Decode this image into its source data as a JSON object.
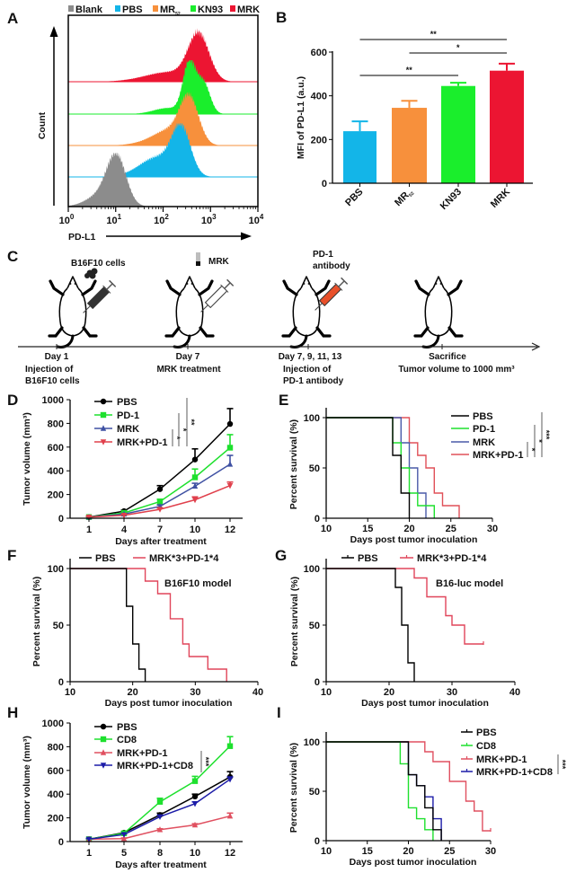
{
  "figure": {
    "panel_labels": [
      "A",
      "B",
      "C",
      "D",
      "E",
      "F",
      "G",
      "H",
      "I"
    ]
  },
  "chart_data": [
    {
      "panel": "A",
      "type": "histogram",
      "xlabel": "PD-L1",
      "ylabel": "Count",
      "x_scale": "log",
      "xlim": [
        1,
        10000
      ],
      "x_ticks": [
        {
          "base": "10",
          "exp": "0"
        },
        {
          "base": "10",
          "exp": "1"
        },
        {
          "base": "10",
          "exp": "2"
        },
        {
          "base": "10",
          "exp": "3"
        },
        {
          "base": "10",
          "exp": "4"
        }
      ],
      "legend_position": "top",
      "series": [
        {
          "name": "Blank",
          "sub": "",
          "color": "#8c8c8c"
        },
        {
          "name": "PBS",
          "sub": "",
          "color": "#13b5e8"
        },
        {
          "name": "MR",
          "sub": "52",
          "color": "#f7903c"
        },
        {
          "name": "KN93",
          "sub": "",
          "color": "#1aee2c"
        },
        {
          "name": "MRK",
          "sub": "",
          "color": "#ec1532"
        }
      ]
    },
    {
      "panel": "B",
      "type": "bar",
      "ylabel": "MFI of PD-L1 (a.u.)",
      "ylim": [
        0,
        600
      ],
      "y_ticks": [
        "0",
        "200",
        "400",
        "600"
      ],
      "categories": [
        {
          "name": "PBS",
          "sub": ""
        },
        {
          "name": "MR",
          "sub": "52"
        },
        {
          "name": "KN93",
          "sub": ""
        },
        {
          "name": "MRK",
          "sub": ""
        }
      ],
      "values": [
        238,
        345,
        445,
        515
      ],
      "errors": [
        45,
        32,
        15,
        32
      ],
      "colors": [
        "#13b5e8",
        "#f7903c",
        "#1aee2c",
        "#ec1532"
      ],
      "significance": [
        {
          "from": 0,
          "to": 3,
          "label": "**"
        },
        {
          "from": 1,
          "to": 3,
          "label": "*"
        },
        {
          "from": 0,
          "to": 2,
          "label": "**"
        }
      ]
    },
    {
      "panel": "D",
      "type": "line",
      "xlabel": "Days after treatment",
      "ylabel": "Tumor volume (mm³)",
      "x": [
        "1",
        "4",
        "7",
        "10",
        "12"
      ],
      "ylim": [
        0,
        1000
      ],
      "y_ticks": [
        "0",
        "200",
        "400",
        "600",
        "800",
        "1000"
      ],
      "legend_position": "top-left",
      "series": [
        {
          "name": "PBS",
          "color": "#000000",
          "marker": "circle",
          "values": [
            10,
            60,
            245,
            495,
            795
          ],
          "errors": [
            5,
            8,
            30,
            90,
            130
          ]
        },
        {
          "name": "PD-1",
          "color": "#1ee02e",
          "marker": "square",
          "values": [
            10,
            45,
            140,
            345,
            595
          ],
          "errors": [
            5,
            8,
            20,
            70,
            110
          ]
        },
        {
          "name": "MRK",
          "color": "#3f51a3",
          "marker": "triangle-up",
          "values": [
            10,
            35,
            100,
            270,
            455
          ],
          "errors": [
            4,
            6,
            12,
            25,
            75
          ]
        },
        {
          "name": "MRK+PD-1",
          "color": "#e0404c",
          "marker": "triangle-down",
          "values": [
            10,
            25,
            75,
            155,
            275
          ],
          "errors": [
            4,
            5,
            10,
            25,
            30
          ]
        }
      ],
      "significance": [
        "*",
        "*",
        "**"
      ]
    },
    {
      "panel": "E",
      "type": "survival",
      "xlabel": "Days post tumor inoculation",
      "ylabel": "Percent survival (%)",
      "xlim": [
        10,
        30
      ],
      "x_ticks": [
        "10",
        "15",
        "20",
        "25",
        "30"
      ],
      "ylim": [
        0,
        100
      ],
      "y_ticks": [
        "0",
        "50",
        "100"
      ],
      "legend_position": "top-right",
      "series": [
        {
          "name": "PBS",
          "color": "#000000",
          "steps": [
            [
              10,
              100
            ],
            [
              18,
              62.5
            ],
            [
              19,
              25
            ],
            [
              20,
              0
            ]
          ]
        },
        {
          "name": "PD-1",
          "color": "#1ee02e",
          "steps": [
            [
              10,
              100
            ],
            [
              18,
              75
            ],
            [
              19,
              50
            ],
            [
              20,
              25
            ],
            [
              21,
              12.5
            ],
            [
              23,
              0
            ]
          ]
        },
        {
          "name": "MRK",
          "color": "#4a5aa8",
          "steps": [
            [
              10,
              100
            ],
            [
              19,
              75
            ],
            [
              20,
              50
            ],
            [
              21,
              25
            ],
            [
              22,
              0
            ]
          ]
        },
        {
          "name": "MRK+PD-1",
          "color": "#e05058",
          "steps": [
            [
              10,
              100
            ],
            [
              20,
              75
            ],
            [
              21,
              62.5
            ],
            [
              22,
              50
            ],
            [
              23,
              25
            ],
            [
              24,
              12.5
            ],
            [
              26,
              0
            ]
          ]
        }
      ],
      "significance": [
        "*",
        "*",
        "***"
      ]
    },
    {
      "panel": "F",
      "type": "survival",
      "xlabel": "Days post tumor inoculation",
      "ylabel": "Percent survival (%)",
      "annotation": "B16F10 model",
      "xlim": [
        10,
        40
      ],
      "x_ticks": [
        "10",
        "20",
        "30",
        "40"
      ],
      "ylim": [
        0,
        100
      ],
      "y_ticks": [
        "0",
        "50",
        "100"
      ],
      "legend_position": "top",
      "series": [
        {
          "name": "PBS",
          "color": "#000000",
          "steps": [
            [
              10,
              100
            ],
            [
              19,
              66.7
            ],
            [
              20,
              33.3
            ],
            [
              21,
              11.1
            ],
            [
              22,
              0
            ]
          ]
        },
        {
          "name": "MRK*3+PD-1*4",
          "color": "#e0455a",
          "steps": [
            [
              10,
              100
            ],
            [
              22,
              88.9
            ],
            [
              24,
              77.8
            ],
            [
              26,
              55.6
            ],
            [
              28,
              33.3
            ],
            [
              29,
              22.2
            ],
            [
              32,
              11.1
            ],
            [
              35,
              0
            ]
          ]
        }
      ]
    },
    {
      "panel": "G",
      "type": "survival",
      "xlabel": "Days post tumor inoculation",
      "ylabel": "Percent survival (%)",
      "annotation": "B16-luc model",
      "xlim": [
        10,
        40
      ],
      "x_ticks": [
        "10",
        "20",
        "30",
        "40"
      ],
      "ylim": [
        0,
        100
      ],
      "y_ticks": [
        "0",
        "50",
        "100"
      ],
      "legend_position": "top",
      "series": [
        {
          "name": "PBS",
          "color": "#000000",
          "steps": [
            [
              10,
              100
            ],
            [
              21,
              83.3
            ],
            [
              22,
              50
            ],
            [
              23,
              16.7
            ],
            [
              24,
              0
            ]
          ]
        },
        {
          "name": "MRK*3+PD-1*4",
          "color": "#e0455a",
          "steps": [
            [
              10,
              100
            ],
            [
              24,
              91.7
            ],
            [
              26,
              75
            ],
            [
              29,
              58.3
            ],
            [
              30,
              50
            ],
            [
              32,
              33.3
            ],
            [
              35,
              33.3
            ]
          ]
        }
      ]
    },
    {
      "panel": "H",
      "type": "line",
      "xlabel": "Days after treatment",
      "ylabel": "Tumor volume (mm³)",
      "x": [
        "1",
        "5",
        "8",
        "10",
        "12"
      ],
      "ylim": [
        0,
        1000
      ],
      "y_ticks": [
        "0",
        "200",
        "400",
        "600",
        "800",
        "1000"
      ],
      "legend_position": "top-left",
      "series": [
        {
          "name": "PBS",
          "color": "#000000",
          "marker": "circle",
          "values": [
            20,
            75,
            225,
            380,
            545
          ],
          "errors": [
            5,
            8,
            15,
            20,
            45
          ]
        },
        {
          "name": "CD8",
          "color": "#1ee02e",
          "marker": "square",
          "values": [
            20,
            70,
            335,
            510,
            805
          ],
          "errors": [
            5,
            8,
            30,
            40,
            80
          ]
        },
        {
          "name": "MRK+PD-1",
          "color": "#e05060",
          "marker": "triangle-up",
          "values": [
            20,
            25,
            100,
            140,
            215
          ],
          "errors": [
            5,
            5,
            8,
            10,
            25
          ]
        },
        {
          "name": "MRK+PD-1+CD8",
          "color": "#1c1ca8",
          "marker": "triangle-down",
          "values": [
            20,
            60,
            210,
            320,
            525
          ],
          "errors": [
            5,
            5,
            10,
            15,
            20
          ]
        }
      ],
      "significance": [
        "***"
      ]
    },
    {
      "panel": "I",
      "type": "survival",
      "xlabel": "Days post tumor inoculation",
      "ylabel": "Percent survival (%)",
      "xlim": [
        10,
        30
      ],
      "x_ticks": [
        "10",
        "15",
        "20",
        "25",
        "30"
      ],
      "ylim": [
        0,
        100
      ],
      "y_ticks": [
        "0",
        "50",
        "100"
      ],
      "legend_position": "top-right",
      "series": [
        {
          "name": "PBS",
          "color": "#000000",
          "steps": [
            [
              10,
              100
            ],
            [
              20,
              66.7
            ],
            [
              21,
              55.6
            ],
            [
              22,
              33.3
            ],
            [
              23,
              11.1
            ],
            [
              24,
              0
            ]
          ]
        },
        {
          "name": "CD8",
          "color": "#1ee02e",
          "steps": [
            [
              10,
              100
            ],
            [
              19,
              77.8
            ],
            [
              20,
              33.3
            ],
            [
              21,
              22.2
            ],
            [
              22,
              11.1
            ],
            [
              23,
              0
            ]
          ]
        },
        {
          "name": "MRK+PD-1",
          "color": "#e05060",
          "steps": [
            [
              10,
              100
            ],
            [
              22,
              90
            ],
            [
              23,
              80
            ],
            [
              25,
              60
            ],
            [
              27,
              40
            ],
            [
              28,
              30
            ],
            [
              29,
              10
            ],
            [
              30,
              10
            ]
          ]
        },
        {
          "name": "MRK+PD-1+CD8",
          "color": "#1c1ca8",
          "steps": [
            [
              10,
              100
            ],
            [
              20,
              66.7
            ],
            [
              21,
              55.6
            ],
            [
              22,
              44.4
            ],
            [
              23,
              22.2
            ],
            [
              24,
              0
            ]
          ]
        }
      ],
      "significance": [
        "***"
      ]
    }
  ],
  "diagram": {
    "panel": "C",
    "top_labels": {
      "cells": "B16F10 cells",
      "drug": "MRK",
      "antibody_line1": "PD-1",
      "antibody_line2": "antibody"
    },
    "events": [
      {
        "day": "Day 1",
        "line1": "Injection of",
        "line2": "B16F10 cells",
        "syringe_color": "#333333"
      },
      {
        "day": "Day 7",
        "line1": "MRK treatment",
        "line2": "",
        "syringe_color": "#ffffff"
      },
      {
        "day": "Day 7, 9, 11, 13",
        "line1": "Injection of",
        "line2": "PD-1 antibody",
        "syringe_color": "#e8502a"
      },
      {
        "day": "Sacrifice",
        "line1": "Tumor volume to 1000 mm³",
        "line2": ""
      }
    ]
  }
}
